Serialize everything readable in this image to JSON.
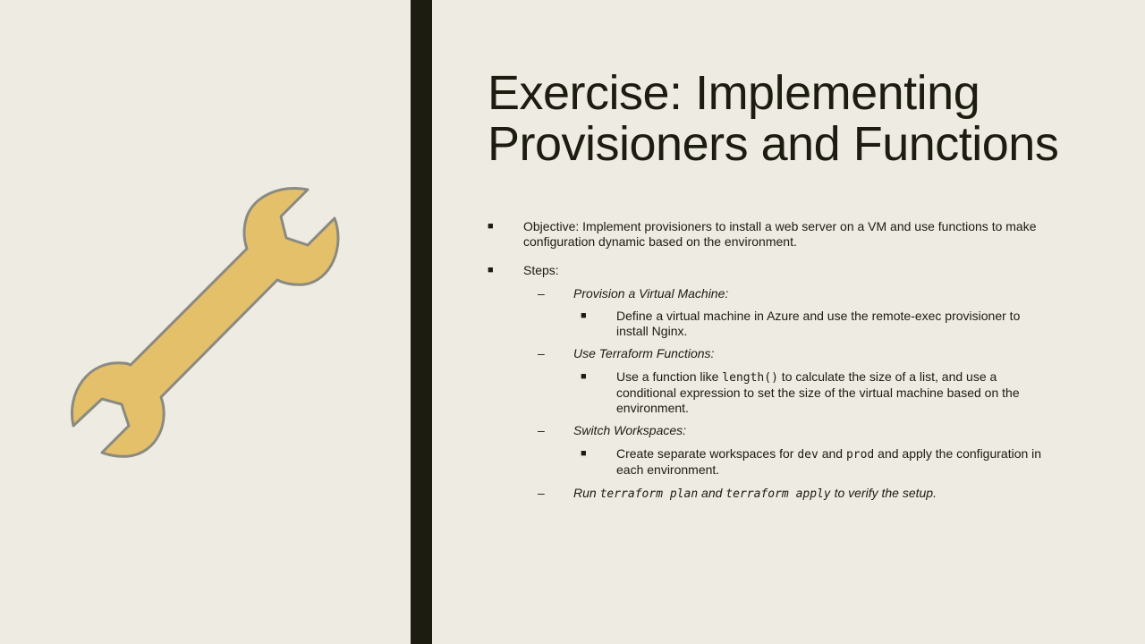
{
  "slide": {
    "title_line1": "Exercise: Implementing",
    "title_line2": "Provisioners and Functions",
    "icon": "wrench-icon",
    "colors": {
      "background": "#eeebe2",
      "bar": "#1c1c10",
      "wrench_fill": "#e4c06b",
      "wrench_stroke": "#8a8a80"
    }
  },
  "bullets": {
    "objective": "Objective: Implement provisioners to install a web server on a VM and use functions to make configuration dynamic based on the environment.",
    "steps_label": "Steps:",
    "step1": {
      "label": "Provision a Virtual Machine:",
      "detail": "Define a virtual machine in Azure and use the remote-exec provisioner to install Nginx."
    },
    "step2": {
      "label": "Use Terraform Functions:",
      "detail_pre": "Use a function like ",
      "detail_code": "length()",
      "detail_post": "  to calculate the size of a list, and use a conditional expression to set the size of the virtual machine based on the environment."
    },
    "step3": {
      "label": "Switch Workspaces:",
      "detail_pre": "Create separate workspaces for ",
      "code_dev": "dev",
      "detail_mid": " and ",
      "code_prod": "prod",
      "detail_post": " and apply the configuration in each environment."
    },
    "step4": {
      "pre": "Run ",
      "code_plan": "terraform plan",
      "mid": " and ",
      "code_apply": "terraform apply",
      "post": "  to verify the setup."
    }
  }
}
